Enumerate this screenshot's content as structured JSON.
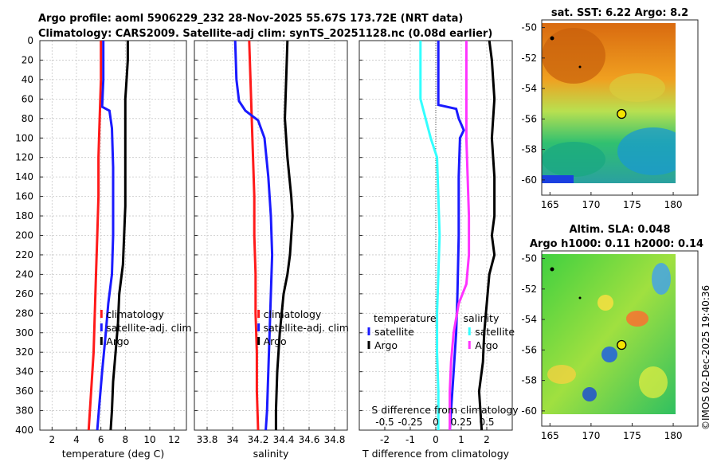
{
  "header": {
    "line1": "Argo profile: aoml 5906229_232 28-Nov-2025 55.67S 173.72E (NRT data)",
    "line2": "Climatology: CARS2009. Satellite-adj clim: synTS_20251128.nc (0.08d earlier)"
  },
  "footer": {
    "stamp": "©IMOS 02-Dec-2025 19:40:36"
  },
  "colors": {
    "red": "#ff1a1a",
    "blue": "#1a1aff",
    "black": "#000000",
    "cyan": "#33ffff",
    "magenta": "#ff33ff"
  },
  "chart_data": [
    {
      "type": "line",
      "id": "temp",
      "xlabel": "temperature (deg C)",
      "ylabel": "",
      "xlim": [
        1,
        13
      ],
      "ylim": [
        400,
        0
      ],
      "xticks": [
        2,
        4,
        6,
        8,
        10,
        12
      ],
      "xtick_labels": [
        "2",
        "4",
        "6",
        "8",
        "10",
        "12"
      ],
      "yticks": [
        0,
        20,
        40,
        60,
        80,
        100,
        120,
        140,
        160,
        180,
        200,
        220,
        240,
        260,
        280,
        300,
        320,
        340,
        360,
        380,
        400
      ],
      "ytick_labels": [
        "0",
        "20",
        "40",
        "60",
        "80",
        "100",
        "120",
        "140",
        "160",
        "180",
        "200",
        "220",
        "240",
        "260",
        "280",
        "300",
        "320",
        "340",
        "360",
        "380",
        "400"
      ],
      "legend": [
        "climatology",
        "satellite-adj. clim",
        "Argo"
      ],
      "series": [
        {
          "name": "climatology",
          "color": "#ff1a1a",
          "points": [
            [
              6.0,
              0
            ],
            [
              6.0,
              40
            ],
            [
              5.9,
              80
            ],
            [
              5.8,
              120
            ],
            [
              5.8,
              160
            ],
            [
              5.7,
              200
            ],
            [
              5.6,
              240
            ],
            [
              5.5,
              280
            ],
            [
              5.4,
              320
            ],
            [
              5.2,
              360
            ],
            [
              5.0,
              400
            ]
          ]
        },
        {
          "name": "satellite-adj. clim",
          "color": "#1a1aff",
          "points": [
            [
              6.2,
              0
            ],
            [
              6.2,
              40
            ],
            [
              6.1,
              68
            ],
            [
              6.7,
              72
            ],
            [
              6.9,
              90
            ],
            [
              7.0,
              130
            ],
            [
              7.0,
              160
            ],
            [
              7.0,
              200
            ],
            [
              6.9,
              240
            ],
            [
              6.6,
              270
            ],
            [
              6.4,
              300
            ],
            [
              6.1,
              340
            ],
            [
              5.9,
              370
            ],
            [
              5.7,
              400
            ]
          ]
        },
        {
          "name": "Argo",
          "color": "#000000",
          "points": [
            [
              8.2,
              0
            ],
            [
              8.2,
              20
            ],
            [
              8.1,
              40
            ],
            [
              8.0,
              60
            ],
            [
              8.0,
              80
            ],
            [
              8.0,
              100
            ],
            [
              8.0,
              120
            ],
            [
              8.0,
              140
            ],
            [
              8.0,
              170
            ],
            [
              7.9,
              200
            ],
            [
              7.8,
              230
            ],
            [
              7.5,
              260
            ],
            [
              7.4,
              290
            ],
            [
              7.2,
              320
            ],
            [
              7.0,
              350
            ],
            [
              6.9,
              380
            ],
            [
              6.8,
              400
            ]
          ]
        }
      ]
    },
    {
      "type": "line",
      "id": "sal",
      "xlabel": "salinity",
      "ylabel": "",
      "xlim": [
        33.7,
        34.9
      ],
      "ylim": [
        400,
        0
      ],
      "xticks": [
        33.8,
        34,
        34.2,
        34.4,
        34.6,
        34.8
      ],
      "xtick_labels": [
        "33.8",
        "34",
        "34.2",
        "34.4",
        "34.6",
        "34.8"
      ],
      "legend": [
        "climatology",
        "satellite-adj. clim",
        "Argo"
      ],
      "series": [
        {
          "name": "climatology",
          "color": "#ff1a1a",
          "points": [
            [
              34.13,
              0
            ],
            [
              34.14,
              40
            ],
            [
              34.15,
              80
            ],
            [
              34.16,
              120
            ],
            [
              34.17,
              160
            ],
            [
              34.17,
              200
            ],
            [
              34.18,
              240
            ],
            [
              34.18,
              280
            ],
            [
              34.19,
              320
            ],
            [
              34.19,
              360
            ],
            [
              34.2,
              400
            ]
          ]
        },
        {
          "name": "satellite-adj. clim",
          "color": "#1a1aff",
          "points": [
            [
              34.02,
              0
            ],
            [
              34.03,
              40
            ],
            [
              34.05,
              62
            ],
            [
              34.1,
              72
            ],
            [
              34.2,
              82
            ],
            [
              34.25,
              100
            ],
            [
              34.28,
              140
            ],
            [
              34.3,
              180
            ],
            [
              34.31,
              220
            ],
            [
              34.3,
              260
            ],
            [
              34.29,
              300
            ],
            [
              34.28,
              340
            ],
            [
              34.27,
              380
            ],
            [
              34.26,
              400
            ]
          ]
        },
        {
          "name": "Argo",
          "color": "#000000",
          "points": [
            [
              34.43,
              0
            ],
            [
              34.42,
              40
            ],
            [
              34.41,
              80
            ],
            [
              34.43,
              120
            ],
            [
              34.46,
              160
            ],
            [
              34.47,
              180
            ],
            [
              34.46,
              200
            ],
            [
              34.45,
              220
            ],
            [
              34.43,
              240
            ],
            [
              34.4,
              260
            ],
            [
              34.37,
              300
            ],
            [
              34.35,
              340
            ],
            [
              34.34,
              380
            ],
            [
              34.34,
              400
            ]
          ]
        }
      ]
    },
    {
      "type": "line",
      "id": "diff",
      "xlabel": "T difference from climatology",
      "ylabel": "",
      "xlim": [
        -3,
        3
      ],
      "ylim": [
        400,
        0
      ],
      "xticks": [
        -2,
        -1,
        0,
        1,
        2
      ],
      "xtick_labels": [
        "-2",
        "-1",
        "0",
        "1",
        "2"
      ],
      "top_axis_label": "S difference from climatology",
      "top_ticks": [
        -0.5,
        -0.25,
        0,
        0.25,
        0.5
      ],
      "top_tick_labels": [
        "-0.5",
        "-0.25",
        "0",
        "0.25",
        "0.5"
      ],
      "legend_temperature_title": "temperature",
      "legend_salinity_title": "salinity",
      "legend_temperature": [
        "satellite",
        "Argo"
      ],
      "legend_salinity": [
        "satellite",
        "Argo"
      ],
      "series": [
        {
          "name": "temperature satellite",
          "color": "#1a1aff",
          "points": [
            [
              0.1,
              0
            ],
            [
              0.1,
              40
            ],
            [
              0.1,
              66
            ],
            [
              0.8,
              70
            ],
            [
              0.9,
              80
            ],
            [
              1.1,
              92
            ],
            [
              0.95,
              100
            ],
            [
              0.9,
              140
            ],
            [
              0.9,
              200
            ],
            [
              0.85,
              260
            ],
            [
              0.8,
              300
            ],
            [
              0.7,
              340
            ],
            [
              0.6,
              380
            ],
            [
              0.55,
              400
            ]
          ]
        },
        {
          "name": "temperature Argo",
          "color": "#000000",
          "points": [
            [
              2.1,
              0
            ],
            [
              2.2,
              20
            ],
            [
              2.3,
              60
            ],
            [
              2.2,
              100
            ],
            [
              2.3,
              140
            ],
            [
              2.3,
              180
            ],
            [
              2.2,
              200
            ],
            [
              2.3,
              220
            ],
            [
              2.1,
              240
            ],
            [
              2.0,
              270
            ],
            [
              1.9,
              300
            ],
            [
              1.85,
              330
            ],
            [
              1.7,
              360
            ],
            [
              1.8,
              400
            ]
          ]
        },
        {
          "name": "salinity satellite",
          "color": "#33ffff",
          "points": [
            [
              -0.6,
              0
            ],
            [
              -0.6,
              40
            ],
            [
              -0.6,
              60
            ],
            [
              -0.4,
              80
            ],
            [
              -0.2,
              100
            ],
            [
              0.05,
              120
            ],
            [
              0.1,
              160
            ],
            [
              0.15,
              200
            ],
            [
              0.1,
              240
            ],
            [
              0.05,
              280
            ],
            [
              0.05,
              320
            ],
            [
              0.1,
              360
            ],
            [
              0.1,
              400
            ]
          ]
        },
        {
          "name": "salinity Argo",
          "color": "#ff33ff",
          "points": [
            [
              1.2,
              0
            ],
            [
              1.2,
              40
            ],
            [
              1.2,
              80
            ],
            [
              1.2,
              100
            ],
            [
              1.25,
              140
            ],
            [
              1.3,
              180
            ],
            [
              1.3,
              220
            ],
            [
              1.2,
              250
            ],
            [
              0.9,
              270
            ],
            [
              0.7,
              300
            ],
            [
              0.6,
              330
            ],
            [
              0.55,
              360
            ],
            [
              0.55,
              400
            ]
          ]
        }
      ]
    },
    {
      "type": "heatmap",
      "id": "sst",
      "title": "sat. SST: 6.22 Argo: 8.2",
      "xlim": [
        164,
        183
      ],
      "ylim": [
        -61,
        -49.5
      ],
      "xticks": [
        165,
        170,
        175,
        180
      ],
      "xtick_labels": [
        "165",
        "170",
        "175",
        "180"
      ],
      "yticks": [
        -50,
        -52,
        -54,
        -56,
        -58,
        -60
      ],
      "ytick_labels": [
        "-50",
        "-52",
        "-54",
        "-56",
        "-58",
        "-60"
      ],
      "marker": {
        "lon": 173.72,
        "lat": -55.67
      }
    },
    {
      "type": "heatmap",
      "id": "sla",
      "title": "Altim. SLA: 0.048",
      "subtitle": "Argo h1000: 0.11 h2000: 0.14",
      "xlim": [
        164,
        183
      ],
      "ylim": [
        -61,
        -49.5
      ],
      "xticks": [
        165,
        170,
        175,
        180
      ],
      "xtick_labels": [
        "165",
        "170",
        "175",
        "180"
      ],
      "yticks": [
        -50,
        -52,
        -54,
        -56,
        -58,
        -60
      ],
      "ytick_labels": [
        "-50",
        "-52",
        "-54",
        "-56",
        "-58",
        "-60"
      ],
      "marker": {
        "lon": 173.72,
        "lat": -55.67
      }
    }
  ]
}
